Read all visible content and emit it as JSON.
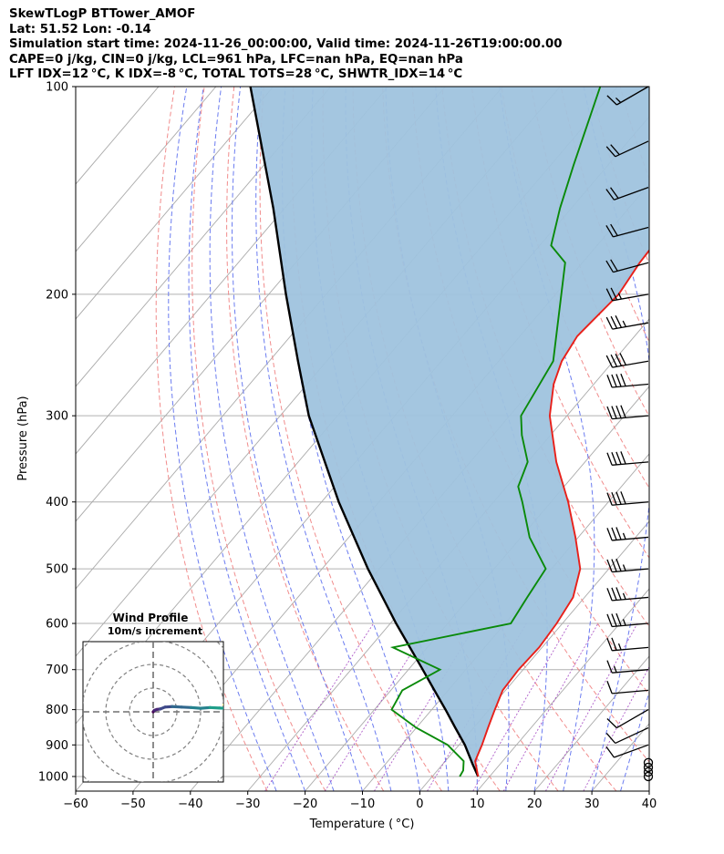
{
  "header": {
    "line1": "SkewTLogP BTTower_AMOF",
    "line2": "Lat: 51.52   Lon: -0.14",
    "line3": "Simulation start time: 2024-11-26_00:00:00, Valid time: 2024-11-26T19:00:00.00",
    "line4": "CAPE=0 j/kg, CIN=0 j/kg, LCL=961 hPa, LFC=nan hPa, EQ=nan hPa",
    "line5": "LFT IDX=12 °C, K IDX=-8 °C, TOTAL TOTS=28 °C, SHWTR_IDX=14 °C"
  },
  "chart_data": [
    {
      "type": "line",
      "subtype": "skew-t log-p",
      "xlabel": "Temperature ( °C)",
      "ylabel": "Pressure (hPa)",
      "xlim": [
        -60,
        40
      ],
      "ylim": [
        1050,
        100
      ],
      "y_scale": "log",
      "x_ticks": [
        "−60",
        "−50",
        "−40",
        "−30",
        "−20",
        "−10",
        "0",
        "10",
        "20",
        "30",
        "40"
      ],
      "y_ticks": [
        "100",
        "200",
        "300",
        "400",
        "500",
        "600",
        "700",
        "800",
        "900",
        "1000"
      ],
      "grid": true,
      "colors": {
        "temperature": "#e8201a",
        "dewpoint": "#0a8a0a",
        "parcel": "#000000",
        "shading": "#9fc3de",
        "dry_adiabats": "#f08080",
        "moist_adiabats": "#6b7cf0",
        "mixing_ratio": "#a040c0",
        "isotherms": "#aaaaaa"
      },
      "series": [
        {
          "role": "temperature",
          "points": [
            [
              1000,
              8
            ],
            [
              950,
              5.2
            ],
            [
              900,
              4
            ],
            [
              850,
              2.5
            ],
            [
              800,
              1
            ],
            [
              750,
              -0.5
            ],
            [
              700,
              -0.8
            ],
            [
              650,
              -0.5
            ],
            [
              600,
              -1
            ],
            [
              550,
              -2
            ],
            [
              500,
              -5
            ],
            [
              450,
              -10.5
            ],
            [
              400,
              -17
            ],
            [
              350,
              -25
            ],
            [
              300,
              -33
            ],
            [
              270,
              -37
            ],
            [
              250,
              -39
            ],
            [
              230,
              -40
            ],
            [
              200,
              -39
            ],
            [
              180,
              -40
            ],
            [
              160,
              -40.5
            ],
            [
              140,
              -42
            ],
            [
              120,
              -44
            ],
            [
              100,
              -46.5
            ]
          ]
        },
        {
          "role": "dewpoint",
          "points": [
            [
              1000,
              4.8
            ],
            [
              980,
              4.5
            ],
            [
              950,
              3.2
            ],
            [
              900,
              -2
            ],
            [
              850,
              -10
            ],
            [
              800,
              -17
            ],
            [
              750,
              -18
            ],
            [
              700,
              -14.5
            ],
            [
              650,
              -26
            ],
            [
              600,
              -9
            ],
            [
              550,
              -10
            ],
            [
              500,
              -11
            ],
            [
              450,
              -18.5
            ],
            [
              400,
              -25
            ],
            [
              380,
              -28
            ],
            [
              350,
              -30
            ],
            [
              320,
              -35
            ],
            [
              300,
              -38
            ],
            [
              250,
              -40.5
            ],
            [
              200,
              -49
            ],
            [
              180,
              -53
            ],
            [
              170,
              -58
            ],
            [
              150,
              -62
            ],
            [
              130,
              -66
            ],
            [
              100,
              -73
            ]
          ]
        },
        {
          "role": "parcel",
          "points": [
            [
              1000,
              8
            ],
            [
              961,
              5.3
            ],
            [
              900,
              1
            ],
            [
              850,
              -3.2
            ],
            [
              800,
              -7.6
            ],
            [
              750,
              -12.4
            ],
            [
              700,
              -17.5
            ],
            [
              600,
              -29
            ],
            [
              500,
              -42
            ],
            [
              400,
              -57
            ],
            [
              300,
              -75
            ],
            [
              250,
              -85
            ],
            [
              200,
              -97
            ],
            [
              150,
              -112
            ],
            [
              100,
              -134
            ]
          ]
        }
      ],
      "wind_barbs": {
        "pressures": [
          1000,
          985,
          970,
          955,
          900,
          850,
          800,
          750,
          700,
          650,
          600,
          550,
          500,
          450,
          400,
          350,
          300,
          270,
          250,
          220,
          200,
          180,
          160,
          140,
          120,
          100
        ],
        "direction_deg": [
          0,
          0,
          0,
          0,
          250,
          245,
          240,
          265,
          265,
          265,
          265,
          265,
          265,
          265,
          265,
          265,
          265,
          265,
          260,
          260,
          260,
          255,
          255,
          250,
          245,
          240
        ],
        "speed_kt": [
          0,
          0,
          0,
          0,
          10,
          10,
          10,
          10,
          15,
          25,
          35,
          35,
          35,
          35,
          40,
          40,
          40,
          40,
          40,
          35,
          25,
          20,
          20,
          20,
          20,
          15
        ]
      },
      "annotations": [
        "Wind Profile",
        "10m/s increment"
      ]
    },
    {
      "type": "scatter",
      "subtype": "hodograph",
      "title": "Wind Profile",
      "subtitle": "10m/s increment",
      "ring_interval_ms": 10,
      "uv_points_ms": [
        [
          0,
          0
        ],
        [
          0.5,
          0.6
        ],
        [
          1.5,
          1
        ],
        [
          3,
          1.2
        ],
        [
          5,
          2
        ],
        [
          8,
          2.2
        ],
        [
          12,
          2
        ],
        [
          16,
          1.8
        ],
        [
          20,
          1.5
        ],
        [
          24,
          1.8
        ],
        [
          28,
          1.6
        ],
        [
          32,
          1.4
        ],
        [
          36,
          1
        ],
        [
          39,
          0.6
        ],
        [
          40,
          0.4
        ],
        [
          38,
          1.5
        ],
        [
          36,
          2
        ],
        [
          35,
          2.5
        ],
        [
          33,
          2.8
        ],
        [
          30,
          3
        ]
      ]
    }
  ]
}
